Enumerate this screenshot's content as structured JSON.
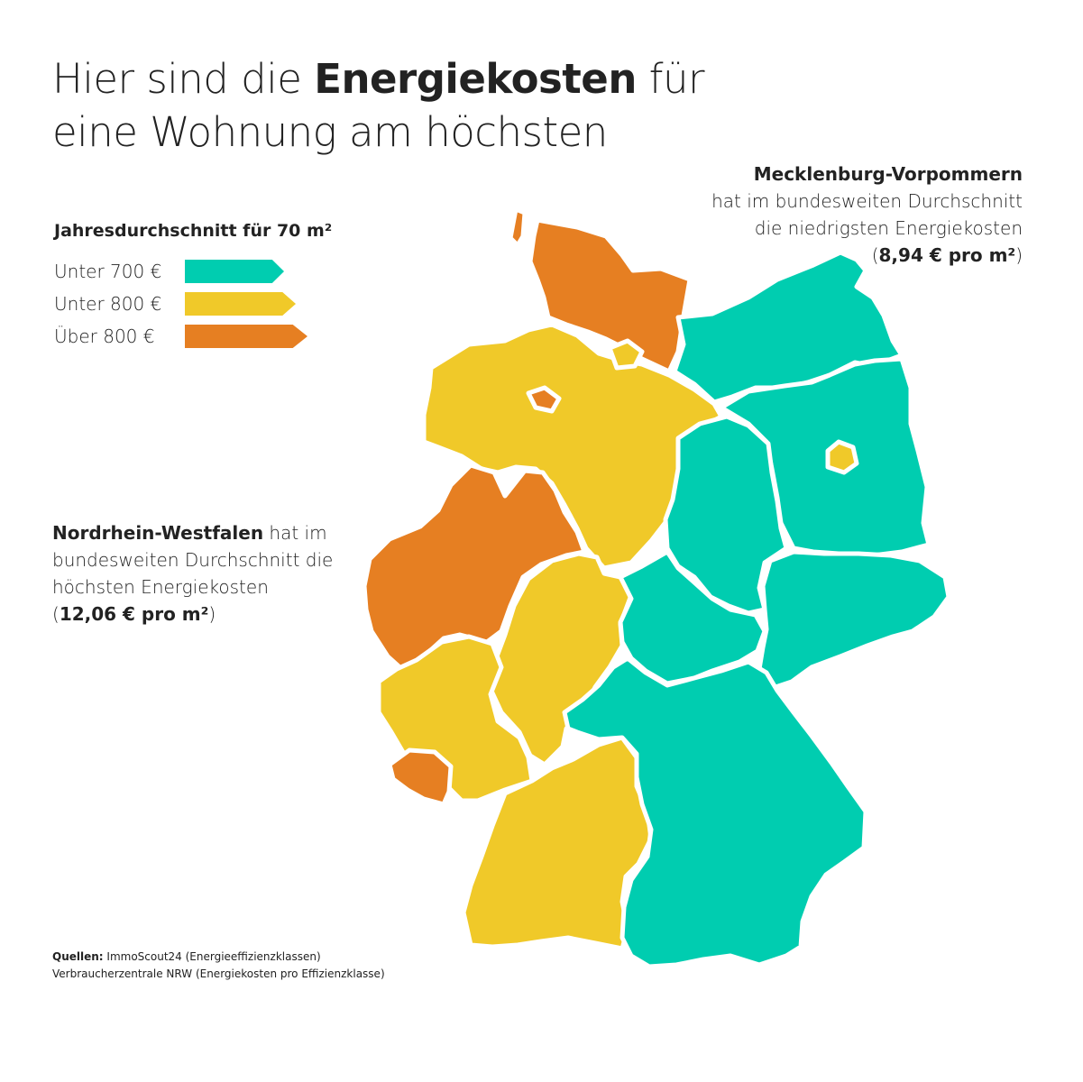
{
  "title": {
    "part1": "Hier sind die ",
    "bold": "Energiekosten",
    "part2": " für",
    "line2": "eine Wohnung am höchsten"
  },
  "legend": {
    "heading": "Jahresdurchschnitt für 70 m²",
    "items": [
      {
        "label": "Unter 700 €",
        "color": "#00cdb0"
      },
      {
        "label": "Unter 800 €",
        "color": "#f0c929"
      },
      {
        "label": "Über 800 €",
        "color": "#e67f22"
      }
    ]
  },
  "callout_mv": {
    "name": "Mecklenburg-Vorpommern",
    "line1": "hat im bundesweiten Durchschnitt",
    "line2": "die niedrigsten Energiekosten",
    "value": "8,94 € pro m²"
  },
  "callout_nrw": {
    "name": "Nordrhein-Westfalen",
    "line1_rest": " hat im",
    "line2": "bundesweiten Durchschnitt die",
    "line3": "höchsten Energiekosten",
    "value": "12,06 € pro m²"
  },
  "sources": {
    "label": "Quellen:",
    "line1": " ImmoScout24 (Energieeffizienzklassen)",
    "line2": "Verbraucherzentrale NRW (Energiekosten pro Effizienzklasse)"
  },
  "colors": {
    "low": "#00cdb0",
    "mid": "#f0c929",
    "high": "#e67f22"
  },
  "states": [
    {
      "name": "Schleswig-Holstein",
      "category": "high"
    },
    {
      "name": "Hamburg",
      "category": "mid"
    },
    {
      "name": "Bremen",
      "category": "high"
    },
    {
      "name": "Niedersachsen",
      "category": "mid"
    },
    {
      "name": "Mecklenburg-Vorpommern",
      "category": "low"
    },
    {
      "name": "Brandenburg",
      "category": "low"
    },
    {
      "name": "Berlin",
      "category": "mid"
    },
    {
      "name": "Sachsen-Anhalt",
      "category": "low"
    },
    {
      "name": "Nordrhein-Westfalen",
      "category": "high"
    },
    {
      "name": "Hessen",
      "category": "mid"
    },
    {
      "name": "Thüringen",
      "category": "low"
    },
    {
      "name": "Sachsen",
      "category": "low"
    },
    {
      "name": "Rheinland-Pfalz",
      "category": "mid"
    },
    {
      "name": "Saarland",
      "category": "high"
    },
    {
      "name": "Baden-Württemberg",
      "category": "mid"
    },
    {
      "name": "Bayern",
      "category": "low"
    }
  ]
}
